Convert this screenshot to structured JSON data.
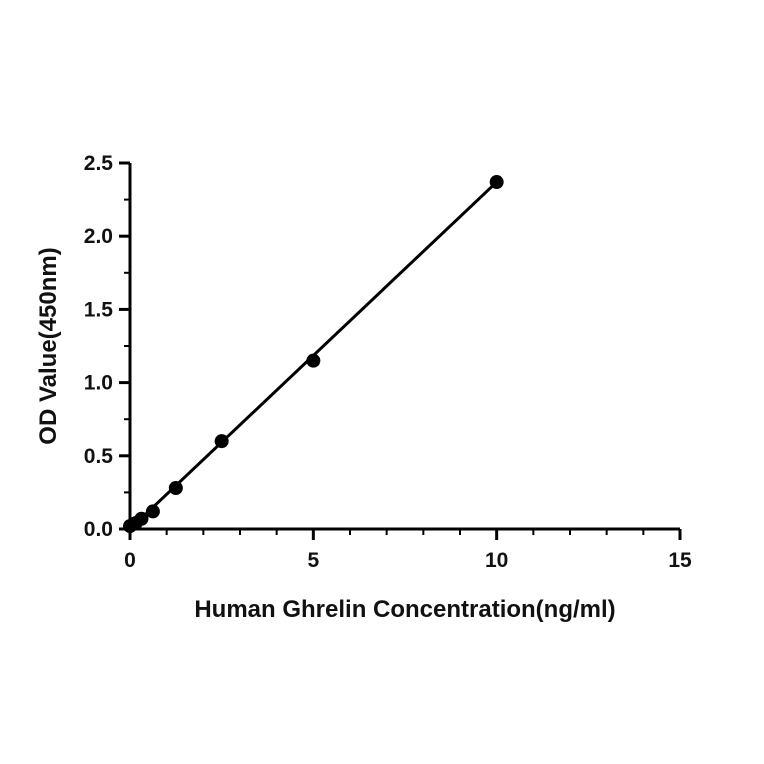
{
  "chart_data": {
    "type": "scatter",
    "title": "",
    "xlabel": "Human Ghrelin Concentration(ng/ml)",
    "ylabel": "OD Value(450nm)",
    "xlim": [
      0,
      15
    ],
    "ylim": [
      0,
      2.5
    ],
    "x_ticks": [
      0,
      5,
      10,
      15
    ],
    "x_tick_labels": [
      "0",
      "5",
      "10",
      "15"
    ],
    "x_minor_step": 1,
    "y_ticks": [
      0,
      0.5,
      1.0,
      1.5,
      2.0,
      2.5
    ],
    "y_tick_labels": [
      "0.0",
      "0.5",
      "1.0",
      "1.5",
      "2.0",
      "2.5"
    ],
    "y_minor_step": 0.25,
    "grid": false,
    "legend": "none",
    "series": [
      {
        "x": [
          0,
          0.156,
          0.313,
          0.625,
          1.25,
          2.5,
          5,
          10
        ],
        "y": [
          0.02,
          0.04,
          0.07,
          0.12,
          0.28,
          0.6,
          1.15,
          2.37
        ]
      }
    ],
    "fit_line": {
      "x": [
        0,
        10
      ],
      "y": [
        0.0,
        2.37
      ]
    },
    "colors": {
      "marker": "#000000",
      "line": "#000000",
      "axis": "#000000"
    }
  }
}
